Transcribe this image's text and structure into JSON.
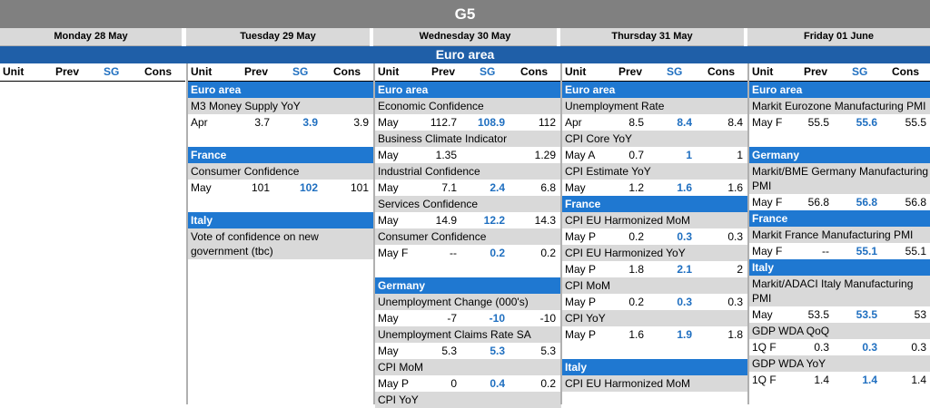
{
  "title": "G5",
  "days": [
    "Monday 28 May",
    "Tuesday 29 May",
    "Wednesday 30 May",
    "Thursday 31 May",
    "Friday 01 June"
  ],
  "region": "Euro area",
  "headers": {
    "unit": "Unit",
    "prev": "Prev",
    "sg": "SG",
    "cons": "Cons"
  },
  "cols": [
    {
      "blocks": []
    },
    {
      "blocks": [
        {
          "band": "Euro area",
          "items": [
            {
              "name": "M3 Money Supply YoY",
              "unit": "Apr",
              "prev": "3.7",
              "sg": "3.9",
              "cons": "3.9"
            }
          ]
        },
        {
          "band": "France",
          "items": [
            {
              "name": "Consumer Confidence",
              "unit": "May",
              "prev": "101",
              "sg": "102",
              "cons": "101"
            }
          ]
        },
        {
          "band": "Italy",
          "items": [
            {
              "name": "Vote of confidence on new government (tbc)"
            }
          ]
        }
      ]
    },
    {
      "blocks": [
        {
          "band": "Euro area",
          "items": [
            {
              "name": "Economic Confidence",
              "unit": "May",
              "prev": "112.7",
              "sg": "108.9",
              "cons": "112"
            },
            {
              "name": "Business Climate Indicator",
              "unit": "May",
              "prev": "1.35",
              "sg": "",
              "cons": "1.29"
            },
            {
              "name": "Industrial Confidence",
              "unit": "May",
              "prev": "7.1",
              "sg": "2.4",
              "cons": "6.8"
            },
            {
              "name": "Services Confidence",
              "unit": "May",
              "prev": "14.9",
              "sg": "12.2",
              "cons": "14.3"
            },
            {
              "name": "Consumer Confidence",
              "unit": "May F",
              "prev": "--",
              "sg": "0.2",
              "cons": "0.2"
            }
          ]
        },
        {
          "band": "Germany",
          "items": [
            {
              "name": "Unemployment Change (000's)",
              "unit": "May",
              "prev": "-7",
              "sg": "-10",
              "cons": "-10"
            },
            {
              "name": "Unemployment Claims Rate SA",
              "unit": "May",
              "prev": "5.3",
              "sg": "5.3",
              "cons": "5.3"
            },
            {
              "name": "CPI MoM",
              "unit": "May P",
              "prev": "0",
              "sg": "0.4",
              "cons": "0.2"
            },
            {
              "name": "CPI YoY"
            }
          ]
        }
      ]
    },
    {
      "blocks": [
        {
          "band": "Euro area",
          "items": [
            {
              "name": "Unemployment Rate",
              "unit": "Apr",
              "prev": "8.5",
              "sg": "8.4",
              "cons": "8.4"
            },
            {
              "name": "CPI Core YoY",
              "unit": "May A",
              "prev": "0.7",
              "sg": "1",
              "cons": "1"
            },
            {
              "name": "CPI Estimate YoY",
              "unit": "May",
              "prev": "1.2",
              "sg": "1.6",
              "cons": "1.6"
            }
          ]
        },
        {
          "band": "France",
          "items": [
            {
              "name": "CPI EU Harmonized MoM",
              "unit": "May P",
              "prev": "0.2",
              "sg": "0.3",
              "cons": "0.3"
            },
            {
              "name": "CPI EU Harmonized YoY",
              "unit": "May P",
              "prev": "1.8",
              "sg": "2.1",
              "cons": "2"
            },
            {
              "name": "CPI MoM",
              "unit": "May P",
              "prev": "0.2",
              "sg": "0.3",
              "cons": "0.3"
            },
            {
              "name": "CPI YoY",
              "unit": "May P",
              "prev": "1.6",
              "sg": "1.9",
              "cons": "1.8"
            }
          ]
        },
        {
          "band": "Italy",
          "items": [
            {
              "name": "CPI EU Harmonized MoM"
            }
          ]
        }
      ]
    },
    {
      "blocks": [
        {
          "band": "Euro area",
          "items": [
            {
              "name": "Markit Eurozone Manufacturing PMI",
              "unit": "May F",
              "prev": "55.5",
              "sg": "55.6",
              "cons": "55.5"
            }
          ]
        },
        {
          "band": "Germany",
          "items": [
            {
              "name": "Markit/BME Germany Manufacturing PMI",
              "unit": "May F",
              "prev": "56.8",
              "sg": "56.8",
              "cons": "56.8"
            }
          ]
        },
        {
          "band": "France",
          "items": [
            {
              "name": "Markit France Manufacturing PMI",
              "unit": "May F",
              "prev": "--",
              "sg": "55.1",
              "cons": "55.1"
            }
          ]
        },
        {
          "band": "Italy",
          "items": [
            {
              "name": "Markit/ADACI Italy Manufacturing PMI",
              "unit": "May",
              "prev": "53.5",
              "sg": "53.5",
              "cons": "53"
            },
            {
              "name": "GDP WDA QoQ",
              "unit": "1Q F",
              "prev": "0.3",
              "sg": "0.3",
              "cons": "0.3"
            },
            {
              "name": "GDP WDA YoY",
              "unit": "1Q F",
              "prev": "1.4",
              "sg": "1.4",
              "cons": "1.4"
            }
          ]
        }
      ]
    }
  ]
}
